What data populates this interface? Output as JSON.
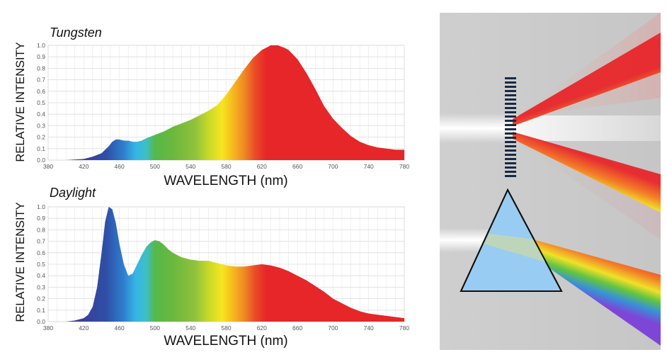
{
  "chart_data": [
    {
      "type": "area",
      "title": "Tungsten",
      "xlabel": "WAVELENGTH (nm)",
      "ylabel": "RELATIVE INTENSITY",
      "xlim": [
        380,
        780
      ],
      "ylim": [
        0,
        1.0
      ],
      "xticks": [
        "380",
        "420",
        "460",
        "500",
        "540",
        "580",
        "620",
        "660",
        "700",
        "740",
        "780"
      ],
      "yticks": [
        "0.0",
        "0.1",
        "0.2",
        "0.3",
        "0.4",
        "0.5",
        "0.6",
        "0.7",
        "0.8",
        "0.9",
        "1.0"
      ],
      "grid": true,
      "series": [
        {
          "name": "Tungsten",
          "x": [
            380,
            400,
            420,
            430,
            440,
            448,
            452,
            456,
            460,
            465,
            470,
            475,
            480,
            485,
            490,
            500,
            510,
            520,
            530,
            540,
            550,
            560,
            570,
            580,
            590,
            600,
            610,
            620,
            630,
            638,
            645,
            650,
            660,
            670,
            680,
            690,
            700,
            710,
            720,
            730,
            740,
            750,
            760,
            770,
            780
          ],
          "y": [
            0.0,
            0.0,
            0.01,
            0.03,
            0.06,
            0.12,
            0.16,
            0.18,
            0.18,
            0.17,
            0.17,
            0.16,
            0.16,
            0.17,
            0.19,
            0.22,
            0.25,
            0.29,
            0.32,
            0.35,
            0.39,
            0.43,
            0.48,
            0.57,
            0.68,
            0.79,
            0.89,
            0.96,
            1.0,
            1.0,
            0.98,
            0.96,
            0.88,
            0.76,
            0.62,
            0.47,
            0.36,
            0.28,
            0.21,
            0.16,
            0.13,
            0.11,
            0.1,
            0.09,
            0.09
          ]
        }
      ]
    },
    {
      "type": "area",
      "title": "Daylight",
      "xlabel": "WAVELENGTH (nm)",
      "ylabel": "RELATIVE INTENSITY",
      "xlim": [
        380,
        780
      ],
      "ylim": [
        0,
        1.0
      ],
      "xticks": [
        "380",
        "420",
        "460",
        "500",
        "540",
        "580",
        "620",
        "660",
        "700",
        "740",
        "780"
      ],
      "yticks": [
        "0.0",
        "0.1",
        "0.2",
        "0.3",
        "0.4",
        "0.5",
        "0.6",
        "0.7",
        "0.8",
        "0.9",
        "1.0"
      ],
      "grid": true,
      "series": [
        {
          "name": "Daylight",
          "x": [
            380,
            400,
            410,
            420,
            425,
            430,
            435,
            440,
            444,
            448,
            452,
            456,
            460,
            465,
            470,
            475,
            480,
            485,
            490,
            495,
            500,
            505,
            510,
            515,
            520,
            530,
            540,
            550,
            560,
            570,
            580,
            590,
            600,
            610,
            620,
            630,
            640,
            650,
            660,
            670,
            680,
            690,
            700,
            710,
            720,
            730,
            740,
            750,
            760,
            770,
            780
          ],
          "y": [
            0.0,
            0.0,
            0.01,
            0.03,
            0.06,
            0.13,
            0.3,
            0.6,
            0.87,
            1.0,
            0.98,
            0.86,
            0.68,
            0.5,
            0.4,
            0.42,
            0.5,
            0.58,
            0.65,
            0.69,
            0.71,
            0.7,
            0.67,
            0.63,
            0.6,
            0.56,
            0.54,
            0.53,
            0.53,
            0.51,
            0.49,
            0.48,
            0.48,
            0.49,
            0.5,
            0.49,
            0.47,
            0.44,
            0.4,
            0.36,
            0.31,
            0.26,
            0.2,
            0.16,
            0.12,
            0.09,
            0.07,
            0.06,
            0.05,
            0.04,
            0.03
          ]
        }
      ]
    }
  ]
}
